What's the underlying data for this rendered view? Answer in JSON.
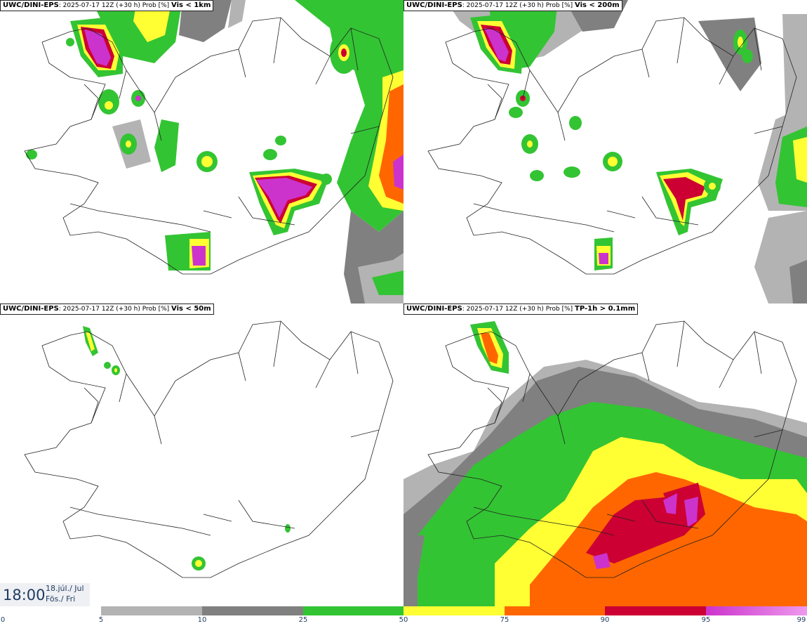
{
  "panels": [
    {
      "model": "UWC/DINI-EPS",
      "run": ": 2025-07-17 12Z (+30 h) Prob [%]",
      "variable": "Vis < 1km"
    },
    {
      "model": "UWC/DINI-EPS",
      "run": ": 2025-07-17 12Z (+30 h) Prob [%]",
      "variable": "Vis < 200m"
    },
    {
      "model": "UWC/DINI-EPS",
      "run": ": 2025-07-17 12Z (+30 h) Prob [%]",
      "variable": "Vis < 50m"
    },
    {
      "model": "UWC/DINI-EPS",
      "run": ": 2025-07-17 12Z (+30 h) Prob [%]",
      "variable": "TP-1h > 0.1mm"
    }
  ],
  "valid_time": {
    "time": "18:00",
    "date_line1": "18.júl./ Jul",
    "date_line2": "Fös./ Fri"
  },
  "legend": {
    "ticks": [
      "0",
      "5",
      "10",
      "25",
      "50",
      "75",
      "90",
      "95",
      "99"
    ],
    "bins": [
      {
        "from": 5,
        "to": 10,
        "color": "#b3b3b3"
      },
      {
        "from": 10,
        "to": 25,
        "color": "#808080"
      },
      {
        "from": 25,
        "to": 50,
        "color": "#33c433"
      },
      {
        "from": 50,
        "to": 75,
        "color": "#ffff33"
      },
      {
        "from": 75,
        "to": 90,
        "color": "#ff6600"
      },
      {
        "from": 90,
        "to": 95,
        "color": "#cc0033"
      },
      {
        "from": 95,
        "to": 99,
        "color": "#cc33cc",
        "gradient_to": "#ee99ee"
      }
    ]
  },
  "colors": {
    "grey_light": "#b3b3b3",
    "grey_dark": "#808080",
    "green": "#33c433",
    "yellow": "#ffff33",
    "orange": "#ff6600",
    "red": "#cc0033",
    "magenta": "#cc33cc",
    "pink": "#ee88ee"
  }
}
